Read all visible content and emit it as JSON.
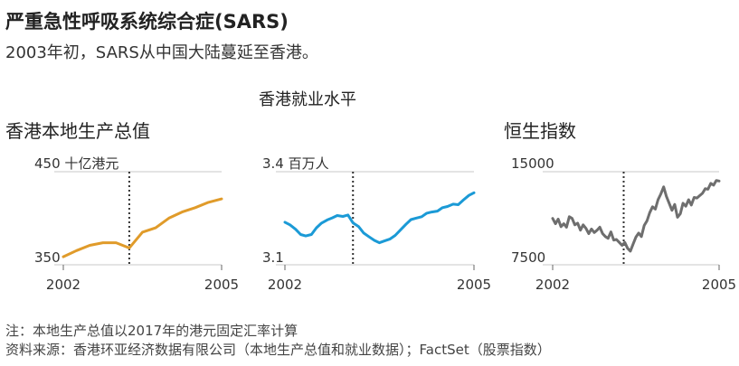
{
  "title": "严重急性呼吸系统综合症(SARS)",
  "subtitle": "2003年初，SARS从中国大陆蔓延至香港。",
  "group_label": "香港就业水平",
  "colors": {
    "gdp": "#E09B2A",
    "employment": "#1B9AD6",
    "hsi": "#6E6E6E",
    "axis": "#999999",
    "marker": "#333333"
  },
  "notes": [
    "注：本地生产总值以2017年的港元固定汇率计算",
    "资料来源：香港环亚经济数据有限公司（本地生产总值和就业数据）；FactSet（股票指数）"
  ],
  "chart_data": [
    {
      "type": "line",
      "title": "香港本地生产总值",
      "unit_label": "450 十亿港元",
      "ytick_labels": [
        "450 十亿港元",
        "350"
      ],
      "xtick_labels": [
        "2002",
        "2005"
      ],
      "xlim": [
        2002,
        2005
      ],
      "ylim": [
        350,
        450
      ],
      "marker_x": 2003.25,
      "series": [
        {
          "x": [
            2002.0,
            2002.25,
            2002.5,
            2002.75,
            2003.0,
            2003.25,
            2003.5,
            2003.75,
            2004.0,
            2004.25,
            2004.5,
            2004.75,
            2005.0
          ],
          "values": [
            353,
            360,
            366,
            369,
            369,
            363,
            381,
            386,
            397,
            404,
            409,
            415,
            419
          ]
        }
      ]
    },
    {
      "type": "line",
      "title": "香港就业水平",
      "unit_label": "3.4 百万人",
      "ytick_labels": [
        "3.4 百万人",
        "3.1"
      ],
      "xtick_labels": [
        "2002",
        "2005"
      ],
      "xlim": [
        2002,
        2005
      ],
      "ylim": [
        3.1,
        3.4
      ],
      "marker_x": 2003.08,
      "series": [
        {
          "x": [
            2002.0,
            2002.08,
            2002.17,
            2002.25,
            2002.33,
            2002.42,
            2002.5,
            2002.58,
            2002.67,
            2002.75,
            2002.83,
            2002.92,
            2003.0,
            2003.08,
            2003.17,
            2003.25,
            2003.33,
            2003.42,
            2003.5,
            2003.58,
            2003.67,
            2003.75,
            2003.83,
            2003.92,
            2004.0,
            2004.08,
            2004.17,
            2004.25,
            2004.33,
            2004.42,
            2004.5,
            2004.58,
            2004.67,
            2004.75,
            2004.83,
            2004.92,
            2005.0
          ],
          "values": [
            3.227,
            3.218,
            3.203,
            3.185,
            3.18,
            3.185,
            3.208,
            3.224,
            3.235,
            3.242,
            3.25,
            3.247,
            3.252,
            3.225,
            3.212,
            3.19,
            3.178,
            3.165,
            3.157,
            3.163,
            3.17,
            3.182,
            3.2,
            3.22,
            3.236,
            3.241,
            3.246,
            3.258,
            3.262,
            3.265,
            3.277,
            3.281,
            3.289,
            3.287,
            3.303,
            3.319,
            3.328
          ]
        }
      ]
    },
    {
      "type": "line",
      "title": "恒生指数",
      "unit_label": "15000",
      "ytick_labels": [
        "15000",
        "7500"
      ],
      "xtick_labels": [
        "2002",
        "2005"
      ],
      "xlim": [
        2002,
        2005
      ],
      "ylim": [
        7500,
        15000
      ],
      "marker_x": 2003.28,
      "series": [
        {
          "x": [
            2002.0,
            2002.05,
            2002.1,
            2002.15,
            2002.2,
            2002.25,
            2002.3,
            2002.35,
            2002.4,
            2002.45,
            2002.5,
            2002.55,
            2002.6,
            2002.65,
            2002.7,
            2002.75,
            2002.8,
            2002.85,
            2002.9,
            2002.95,
            2003.0,
            2003.05,
            2003.1,
            2003.15,
            2003.2,
            2003.25,
            2003.3,
            2003.35,
            2003.4,
            2003.45,
            2003.5,
            2003.55,
            2003.6,
            2003.65,
            2003.7,
            2003.75,
            2003.8,
            2003.85,
            2003.9,
            2003.95,
            2004.0,
            2004.05,
            2004.1,
            2004.15,
            2004.2,
            2004.25,
            2004.3,
            2004.35,
            2004.4,
            2004.45,
            2004.5,
            2004.55,
            2004.6,
            2004.65,
            2004.7,
            2004.75,
            2004.8,
            2004.85,
            2004.9,
            2004.95,
            2005.0
          ],
          "values": [
            11000,
            10550,
            10950,
            10300,
            10550,
            10250,
            11150,
            11000,
            10450,
            10600,
            10000,
            10450,
            10150,
            9700,
            10100,
            9800,
            10000,
            10250,
            9700,
            9450,
            9300,
            9850,
            9150,
            9200,
            8950,
            8700,
            8950,
            8450,
            8200,
            8800,
            9400,
            9750,
            9450,
            10400,
            10800,
            11500,
            12000,
            11800,
            12600,
            13100,
            13700,
            12900,
            12300,
            11700,
            12200,
            11100,
            11400,
            12300,
            12050,
            12600,
            12150,
            12800,
            12750,
            12950,
            13150,
            13550,
            13500,
            14000,
            13850,
            14250,
            14200
          ]
        }
      ]
    }
  ]
}
